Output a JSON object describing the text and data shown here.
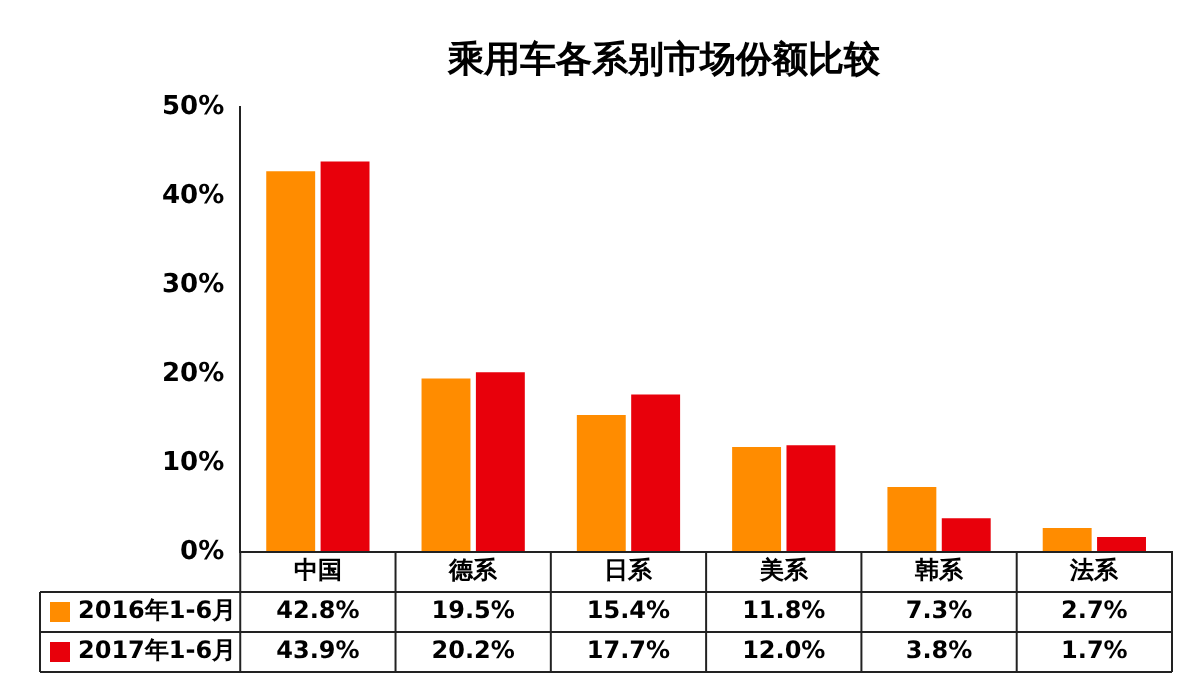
{
  "chart_data": {
    "type": "bar",
    "title": "乘用车各系别市场份额比较",
    "categories": [
      "中国",
      "德系",
      "日系",
      "美系",
      "韩系",
      "法系"
    ],
    "series": [
      {
        "name": "2016年1-6月",
        "color": "#ff8c00",
        "values": [
          42.8,
          19.5,
          15.4,
          11.8,
          7.3,
          2.7
        ],
        "value_labels": [
          "42.8%",
          "19.5%",
          "15.4%",
          "11.8%",
          "7.3%",
          "2.7%"
        ]
      },
      {
        "name": "2017年1-6月",
        "color": "#e8000b",
        "values": [
          43.9,
          20.2,
          17.7,
          12.0,
          3.8,
          1.7
        ],
        "value_labels": [
          "43.9%",
          "20.2%",
          "17.7%",
          "12.0%",
          "3.8%",
          "1.7%"
        ]
      }
    ],
    "ylim": [
      0,
      50
    ],
    "yticks": [
      {
        "value": 0,
        "label": "0%"
      },
      {
        "value": 10,
        "label": "10%"
      },
      {
        "value": 20,
        "label": "20%"
      },
      {
        "value": 30,
        "label": "30%"
      },
      {
        "value": 40,
        "label": "40%"
      },
      {
        "value": 50,
        "label": "50%"
      }
    ],
    "grid": false,
    "legend": "bottom"
  }
}
